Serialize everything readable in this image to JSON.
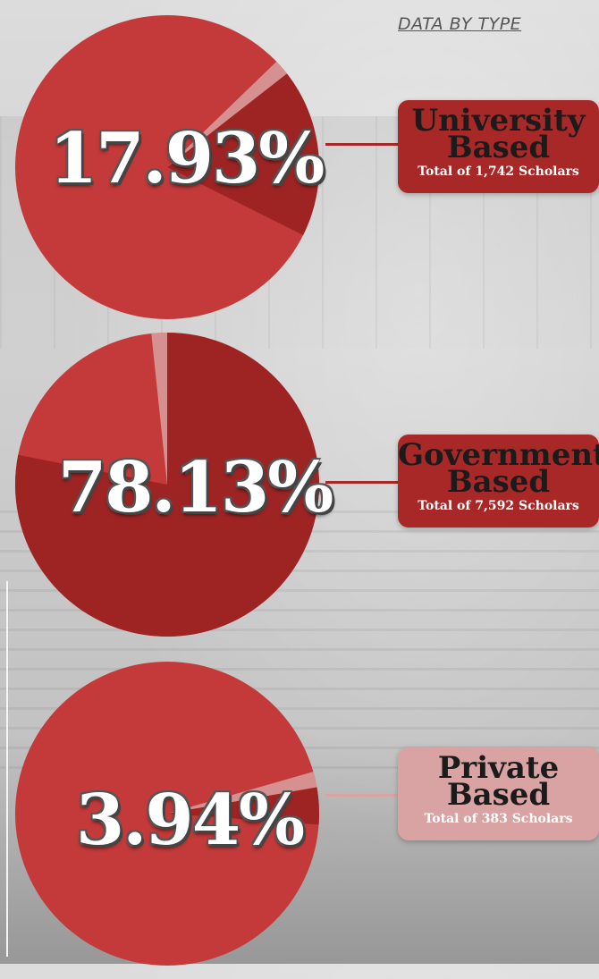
{
  "header": "DATA BY TYPE",
  "colors": {
    "pie_main": "#c43a3a",
    "pie_dark": "#9e2424",
    "pie_light": "#d9a0a0",
    "tag_dark": "#a82828",
    "tag_light": "#d9a3a3"
  },
  "chart_data": [
    {
      "type": "pie",
      "title": "",
      "label": "17.93%",
      "value": 17.93,
      "category": {
        "line1": "University",
        "line2": "Based",
        "subtitle": "Total of 1,742 Scholars"
      }
    },
    {
      "type": "pie",
      "title": "",
      "label": "78.13%",
      "value": 78.13,
      "category": {
        "line1": "Government",
        "line2": "Based",
        "subtitle": "Total of 7,592 Scholars"
      }
    },
    {
      "type": "pie",
      "title": "",
      "label": "3.94%",
      "value": 3.94,
      "category": {
        "line1": "Private",
        "line2": "Based",
        "subtitle": "Total of 383 Scholars"
      }
    }
  ]
}
